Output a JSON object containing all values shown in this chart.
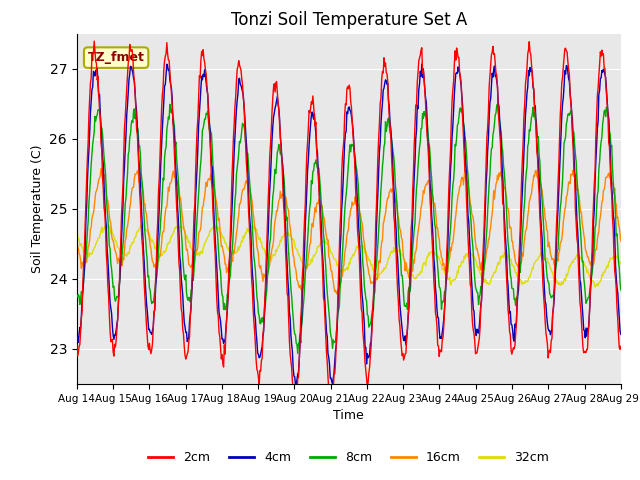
{
  "title": "Tonzi Soil Temperature Set A",
  "xlabel": "Time",
  "ylabel": "Soil Temperature (C)",
  "annotation": "TZ_fmet",
  "ylim": [
    22.5,
    27.5
  ],
  "legend_labels": [
    "2cm",
    "4cm",
    "8cm",
    "16cm",
    "32cm"
  ],
  "legend_colors": [
    "#ff0000",
    "#0000bb",
    "#00aa00",
    "#ff8800",
    "#dddd00"
  ],
  "bg_color": "#e8e8e8",
  "x_tick_labels": [
    "Aug 14",
    "Aug 15",
    "Aug 16",
    "Aug 17",
    "Aug 18",
    "Aug 19",
    "Aug 20",
    "Aug 21",
    "Aug 22",
    "Aug 23",
    "Aug 24",
    "Aug 25",
    "Aug 26",
    "Aug 27",
    "Aug 28",
    "Aug 29"
  ],
  "num_days": 15,
  "points_per_day": 48
}
